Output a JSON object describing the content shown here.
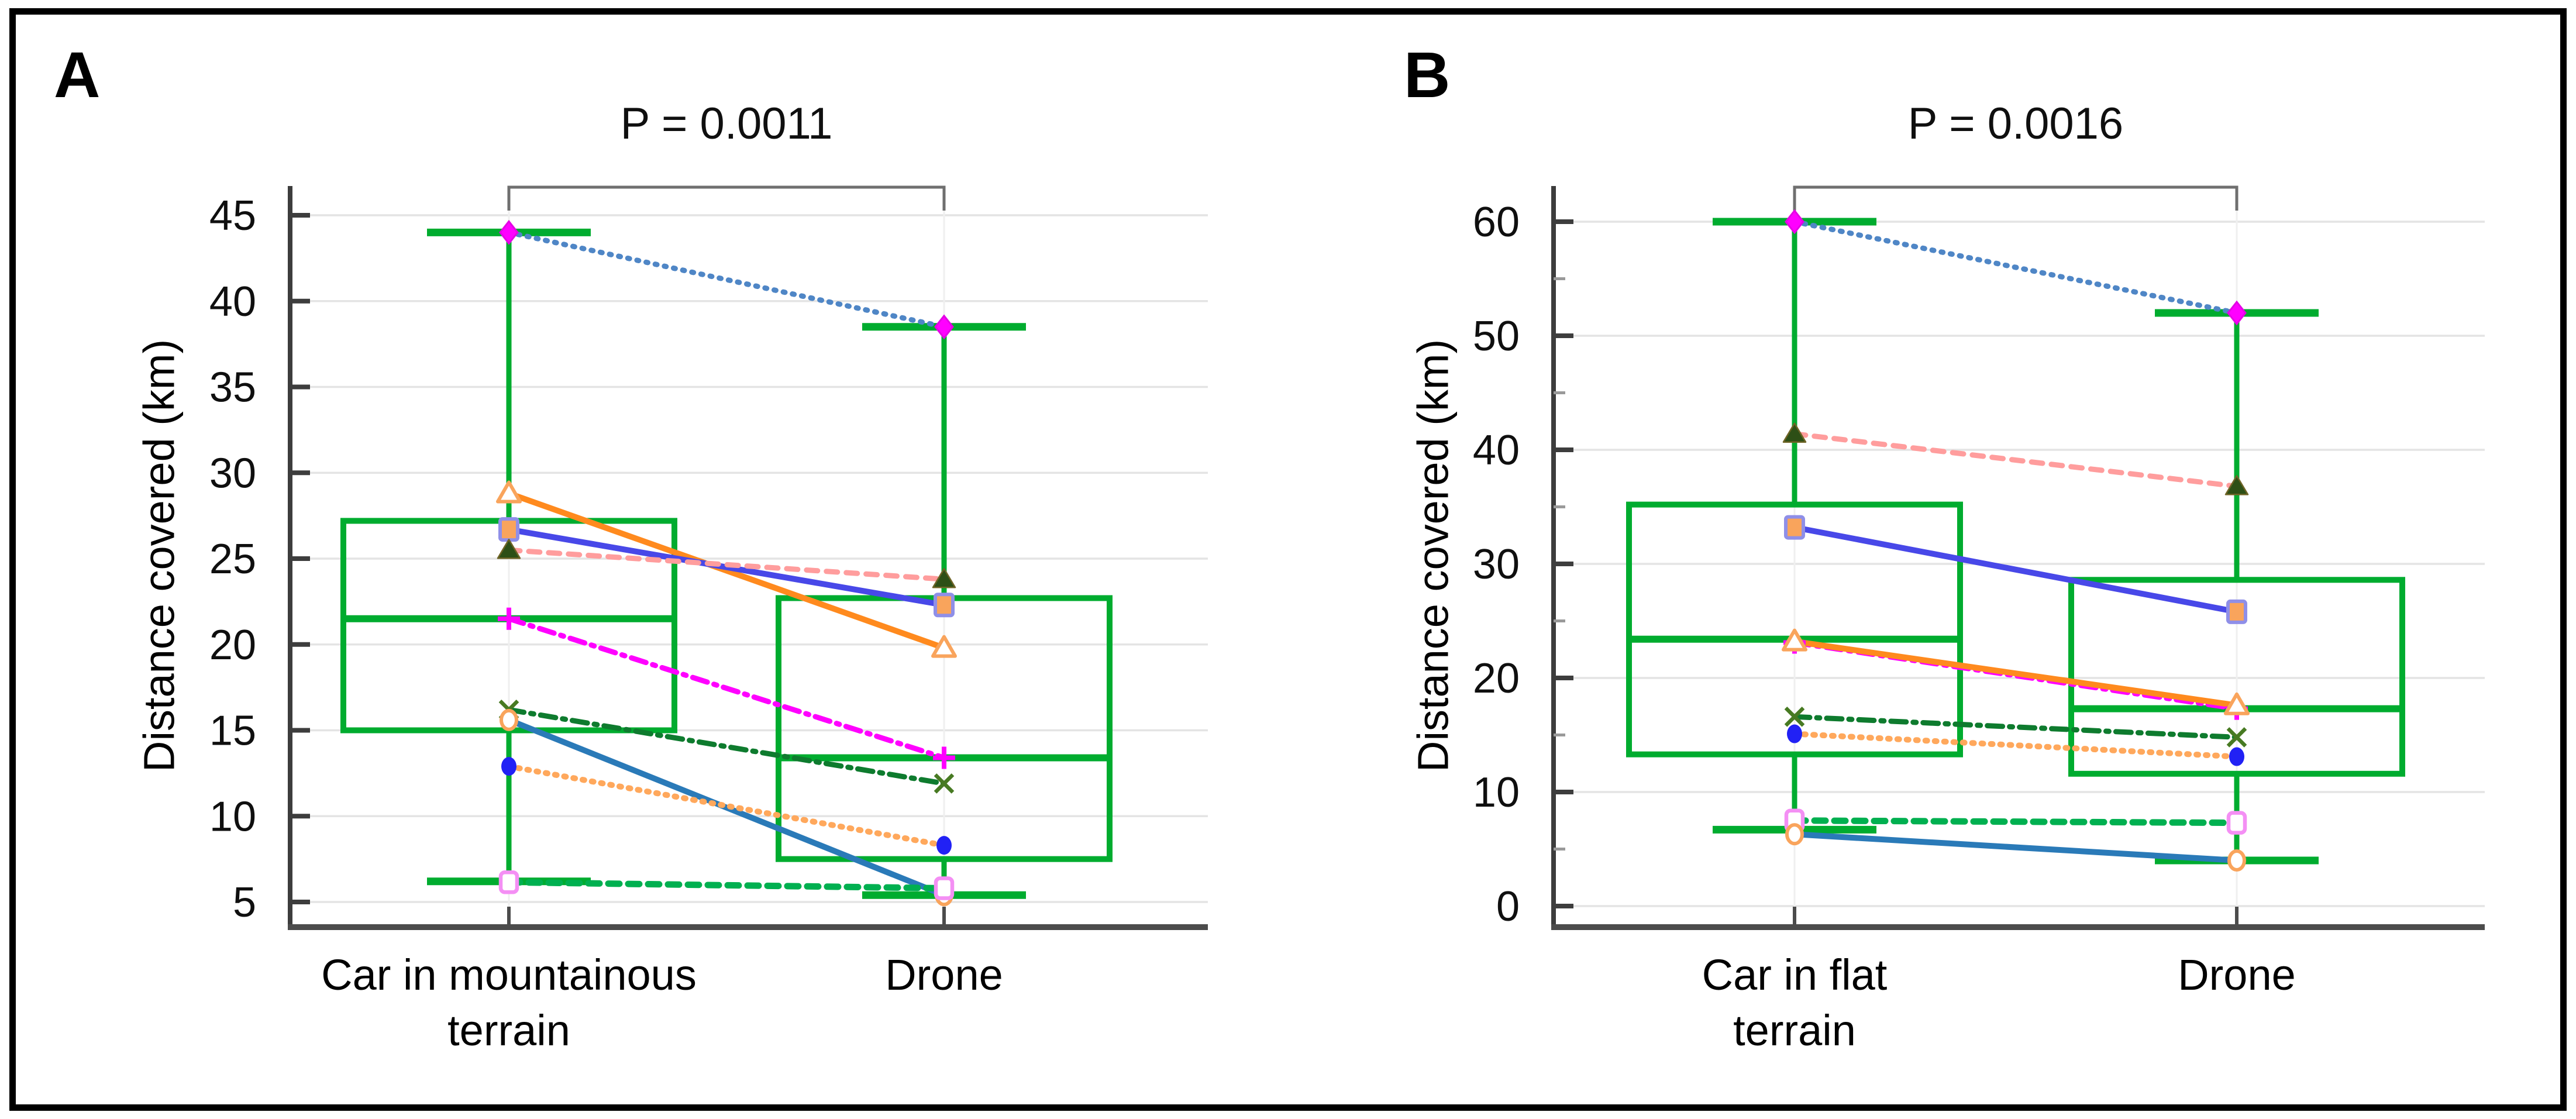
{
  "figure": {
    "background": "#ffffff",
    "border_color": "#000000",
    "axis_color": "#3d3d3d",
    "gridline_color": "#e4e4e4",
    "bracket_color": "#6f6f6f",
    "tick_label_color": "#0f0f0f"
  },
  "chart_data": [
    {
      "type": "box",
      "panel_letter": "A",
      "p_label": "P = 0.0011",
      "ylabel": "Distance covered (km)",
      "ylim": [
        3.5,
        46.5
      ],
      "yticks": [
        5,
        10,
        15,
        20,
        25,
        30,
        35,
        40,
        45
      ],
      "yticks_minor": [],
      "grid": "horizontal gridlines at major ticks, faint vertical line at each category",
      "legend_position": "none",
      "categories": [
        [
          "Car in mountainous",
          "terrain"
        ],
        [
          "Drone"
        ]
      ],
      "box_color": "#00AC2F",
      "boxes": [
        {
          "category": "Car in mountainous terrain",
          "whisker_low": 6.2,
          "q1": 15.0,
          "median": 21.5,
          "q3": 27.2,
          "whisker_high": 44.0
        },
        {
          "category": "Drone",
          "whisker_low": 5.4,
          "q1": 7.5,
          "median": 13.4,
          "q3": 22.7,
          "whisker_high": 38.5
        }
      ],
      "pairs": [
        {
          "subject": "pair-1",
          "marker": "diamond",
          "values": [
            44.0,
            38.5
          ],
          "line_style": "dotted",
          "line_width": 9,
          "line_color": "#4F86C6",
          "marker_fill": "#FF00FF",
          "marker_stroke": "#E400E4"
        },
        {
          "subject": "pair-2",
          "marker": "triangle-open",
          "values": [
            28.8,
            19.8
          ],
          "line_style": "solid",
          "line_width": 10,
          "line_color": "#FF8A1E",
          "marker_fill": "#FFFFFF",
          "marker_stroke": "#F9A45C"
        },
        {
          "subject": "pair-3",
          "marker": "square-filled",
          "values": [
            26.7,
            22.3
          ],
          "line_style": "solid",
          "line_width": 10,
          "line_color": "#4848E8",
          "marker_fill": "#F9A45C",
          "marker_stroke": "#8F8FE8"
        },
        {
          "subject": "pair-4",
          "marker": "triangle-filled",
          "values": [
            25.5,
            23.8
          ],
          "line_style": "dashed",
          "line_width": 9,
          "line_color": "#FF9D9D",
          "marker_fill": "#2D4F16",
          "marker_stroke": "#6E6426"
        },
        {
          "subject": "pair-5",
          "marker": "plus",
          "values": [
            21.5,
            13.4
          ],
          "line_style": "dashdot",
          "line_width": 9,
          "line_color": "#FF00FF",
          "marker_fill": "none",
          "marker_stroke": "#FF00FF"
        },
        {
          "subject": "pair-6",
          "marker": "x",
          "values": [
            16.2,
            11.9
          ],
          "line_style": "dashdot",
          "line_width": 9,
          "line_color": "#0E7B2E",
          "marker_fill": "none",
          "marker_stroke": "#477A22"
        },
        {
          "subject": "pair-7",
          "marker": "circle-open",
          "values": [
            15.6,
            5.4
          ],
          "line_style": "solid",
          "line_width": 10,
          "line_color": "#2A7AB8",
          "marker_fill": "#FFFFFF",
          "marker_stroke": "#F9A45C"
        },
        {
          "subject": "pair-8",
          "marker": "circle-filled",
          "values": [
            12.9,
            8.3
          ],
          "line_style": "dotted",
          "line_width": 10,
          "line_color": "#FFA85C",
          "marker_fill": "#2121F5",
          "marker_stroke": "#2121F5"
        },
        {
          "subject": "pair-9",
          "marker": "square-open",
          "values": [
            6.15,
            5.8
          ],
          "line_style": "dashed",
          "line_width": 11,
          "line_color": "#00B050",
          "marker_fill": "#FFFFFF",
          "marker_stroke": "#F48FF4"
        }
      ]
    },
    {
      "type": "box",
      "panel_letter": "B",
      "p_label": "P = 0.0016",
      "ylabel": "Distance covered (km)",
      "ylim": [
        -3,
        62
      ],
      "yticks": [
        0,
        10,
        20,
        30,
        40,
        50,
        60
      ],
      "yticks_minor": [
        5,
        15,
        25,
        35,
        45,
        55
      ],
      "grid": "horizontal gridlines at major ticks, faint vertical line at each category",
      "legend_position": "none",
      "categories": [
        [
          "Car in flat",
          "terrain"
        ],
        [
          "Drone"
        ]
      ],
      "box_color": "#00AC2F",
      "boxes": [
        {
          "category": "Car in flat terrain",
          "whisker_low": 6.7,
          "q1": 13.3,
          "median": 23.4,
          "q3": 35.2,
          "whisker_high": 60.0
        },
        {
          "category": "Drone",
          "whisker_low": 4.0,
          "q1": 11.6,
          "median": 17.3,
          "q3": 28.6,
          "whisker_high": 52.0
        }
      ],
      "pairs": [
        {
          "subject": "pair-1",
          "marker": "diamond",
          "values": [
            60.0,
            52.0
          ],
          "line_style": "dotted",
          "line_width": 9,
          "line_color": "#4F86C6",
          "marker_fill": "#FF00FF",
          "marker_stroke": "#E400E4"
        },
        {
          "subject": "pair-2",
          "marker": "triangle-filled",
          "values": [
            41.4,
            36.8
          ],
          "line_style": "dashed",
          "line_width": 9,
          "line_color": "#FF9D9D",
          "marker_fill": "#2D4F16",
          "marker_stroke": "#6E6426"
        },
        {
          "subject": "pair-3",
          "marker": "square-filled",
          "values": [
            33.2,
            25.8
          ],
          "line_style": "solid",
          "line_width": 10,
          "line_color": "#4848E8",
          "marker_fill": "#F9A45C",
          "marker_stroke": "#8F8FE8"
        },
        {
          "subject": "pair-4",
          "marker": "plus",
          "values": [
            23.1,
            17.3
          ],
          "line_style": "dashdot",
          "line_width": 9,
          "line_color": "#FF00FF",
          "marker_fill": "none",
          "marker_stroke": "#FF00FF"
        },
        {
          "subject": "pair-5",
          "marker": "triangle-open",
          "values": [
            23.2,
            17.6
          ],
          "line_style": "solid",
          "line_width": 10,
          "line_color": "#FF8A1E",
          "marker_fill": "#FFFFFF",
          "marker_stroke": "#F9A45C"
        },
        {
          "subject": "pair-6",
          "marker": "x",
          "values": [
            16.6,
            14.8
          ],
          "line_style": "dashdot",
          "line_width": 9,
          "line_color": "#0E7B2E",
          "marker_fill": "none",
          "marker_stroke": "#477A22"
        },
        {
          "subject": "pair-7",
          "marker": "circle-filled",
          "values": [
            15.1,
            13.1
          ],
          "line_style": "dotted",
          "line_width": 10,
          "line_color": "#FFA85C",
          "marker_fill": "#2121F5",
          "marker_stroke": "#2121F5"
        },
        {
          "subject": "pair-8",
          "marker": "square-open",
          "values": [
            7.5,
            7.3
          ],
          "line_style": "dashed",
          "line_width": 11,
          "line_color": "#00B050",
          "marker_fill": "#FFFFFF",
          "marker_stroke": "#F48FF4"
        },
        {
          "subject": "pair-9",
          "marker": "circle-open",
          "values": [
            6.3,
            4.0
          ],
          "line_style": "solid",
          "line_width": 10,
          "line_color": "#2A7AB8",
          "marker_fill": "#FFFFFF",
          "marker_stroke": "#F9A45C"
        }
      ]
    }
  ]
}
